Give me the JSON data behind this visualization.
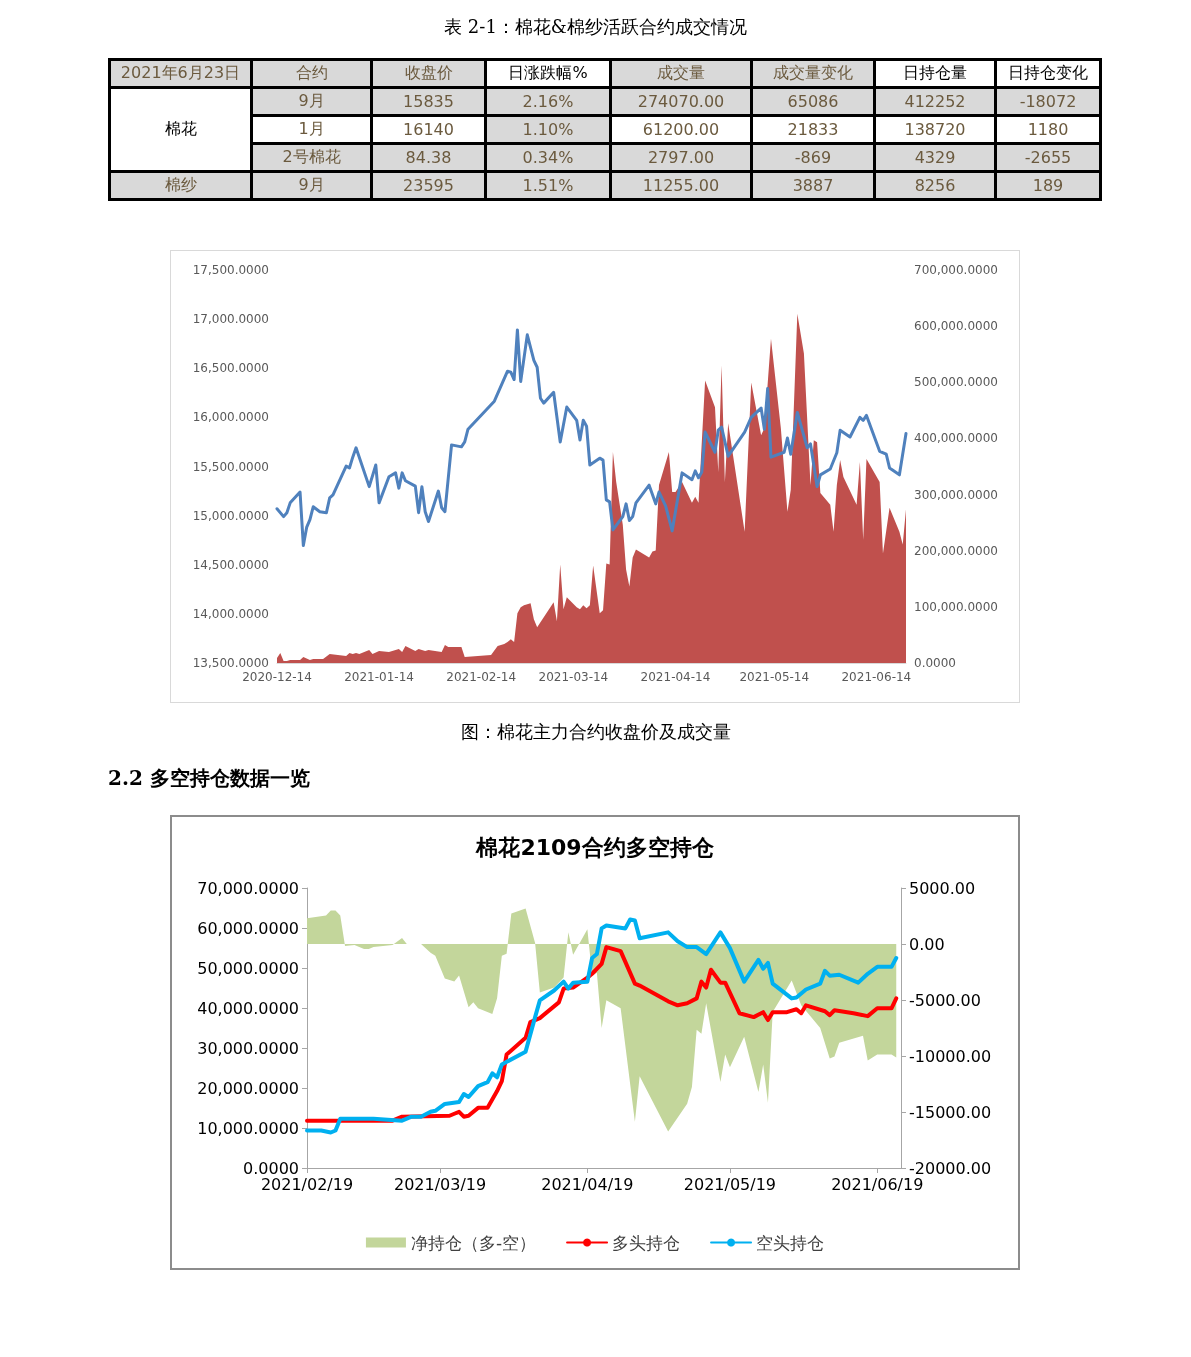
{
  "chart_data": [
    {
      "type": "other",
      "title": "表 2-1：棉花&棉纱活跃合约成交情况",
      "annotations": [
        "2021年6月23日",
        "合约",
        "收盘价",
        "日涨跌幅%",
        "成交量",
        "成交量变化",
        "日持仓量",
        "日持仓变化",
        "棉花",
        "9月",
        "15835",
        "2.16%",
        "274070.00",
        "65086",
        "412252",
        "-18072",
        "1月",
        "16140",
        "1.10%",
        "61200.00",
        "21833",
        "138720",
        "1180",
        "2号棉花",
        "84.38",
        "0.34%",
        "2797.00",
        "-869",
        "4329",
        "-2655",
        "棉纱",
        "9月",
        "23595",
        "1.51%",
        "11255.00",
        "3887",
        "8256",
        "189"
      ]
    },
    {
      "type": "line",
      "title": "图：棉花主力合约收盘价及成交量",
      "legend": false,
      "marker": "none",
      "xlim": [
        "2020-12-14",
        "2021-06-23"
      ],
      "xticks": [
        "2020-12-14",
        "2021-01-14",
        "2021-02-14",
        "2021-03-14",
        "2021-04-14",
        "2021-05-14",
        "2021-06-14"
      ],
      "ylim": [
        13500,
        17500
      ],
      "yticks": [
        {
          "value": 13500,
          "label": "13,500.0000"
        },
        {
          "value": 14000,
          "label": "14,000.0000"
        },
        {
          "value": 14500,
          "label": "14,500.0000"
        },
        {
          "value": 15000,
          "label": "15,000.0000"
        },
        {
          "value": 15500,
          "label": "15,500.0000"
        },
        {
          "value": 16000,
          "label": "16,000.0000"
        },
        {
          "value": 16500,
          "label": "16,500.0000"
        },
        {
          "value": 17000,
          "label": "17,000.0000"
        },
        {
          "value": 17500,
          "label": "17,500.0000"
        }
      ],
      "y2lim": [
        0,
        700000
      ],
      "y2ticks": [
        {
          "value": 0,
          "label": "0.0000"
        },
        {
          "value": 100000,
          "label": "100,000.0000"
        },
        {
          "value": 200000,
          "label": "200,000.0000"
        },
        {
          "value": 300000,
          "label": "300,000.0000"
        },
        {
          "value": 400000,
          "label": "400,000.0000"
        },
        {
          "value": 500000,
          "label": "500,000.0000"
        },
        {
          "value": 600000,
          "label": "600,000.0000"
        },
        {
          "value": 700000,
          "label": "700,000.0000"
        }
      ],
      "series": [
        {
          "type": "area",
          "axis": "y2",
          "color": "#c0504d",
          "x": [
            "2020-12-14",
            "2020-12-15",
            "2020-12-16",
            "2020-12-17",
            "2020-12-18",
            "2020-12-21",
            "2020-12-22",
            "2020-12-24",
            "2020-12-25",
            "2020-12-28",
            "2020-12-30",
            "2021-01-04",
            "2021-01-05",
            "2021-01-06",
            "2021-01-07",
            "2021-01-08",
            "2021-01-11",
            "2021-01-12",
            "2021-01-14",
            "2021-01-17",
            "2021-01-20",
            "2021-01-21",
            "2021-01-22",
            "2021-01-25",
            "2021-01-26",
            "2021-01-28",
            "2021-01-29",
            "2021-02-02",
            "2021-02-03",
            "2021-02-04",
            "2021-02-08",
            "2021-02-09",
            "2021-02-17",
            "2021-02-19",
            "2021-02-21",
            "2021-02-22",
            "2021-02-23",
            "2021-02-24",
            "2021-02-25",
            "2021-02-26",
            "2021-02-27",
            "2021-03-01",
            "2021-03-02",
            "2021-03-03",
            "2021-03-08",
            "2021-03-09",
            "2021-03-10",
            "2021-03-11",
            "2021-03-12",
            "2021-03-15",
            "2021-03-16",
            "2021-03-17",
            "2021-03-18",
            "2021-03-19",
            "2021-03-20",
            "2021-03-22",
            "2021-03-23",
            "2021-03-24",
            "2021-03-25",
            "2021-03-26",
            "2021-03-27",
            "2021-03-29",
            "2021-03-30",
            "2021-03-31",
            "2021-04-01",
            "2021-04-02",
            "2021-04-06",
            "2021-04-07",
            "2021-04-08",
            "2021-04-09",
            "2021-04-12",
            "2021-04-13",
            "2021-04-14",
            "2021-04-16",
            "2021-04-19",
            "2021-04-20",
            "2021-04-21",
            "2021-04-23",
            "2021-04-26",
            "2021-04-27",
            "2021-04-28",
            "2021-04-29",
            "2021-04-30",
            "2021-05-05",
            "2021-05-07",
            "2021-05-10",
            "2021-05-11",
            "2021-05-13",
            "2021-05-16",
            "2021-05-18",
            "2021-05-19",
            "2021-05-21",
            "2021-05-23",
            "2021-05-25",
            "2021-05-26",
            "2021-05-27",
            "2021-05-28",
            "2021-05-31",
            "2021-06-01",
            "2021-06-02",
            "2021-06-03",
            "2021-06-04",
            "2021-06-08",
            "2021-06-09",
            "2021-06-10",
            "2021-06-11",
            "2021-06-15",
            "2021-06-16",
            "2021-06-18",
            "2021-06-21",
            "2021-06-22",
            "2021-06-23"
          ],
          "values": [
            8900,
            17700,
            3500,
            3500,
            5300,
            5300,
            10600,
            5300,
            7100,
            7100,
            16000,
            12400,
            17700,
            16000,
            17700,
            16000,
            23000,
            16000,
            21300,
            19500,
            24800,
            19500,
            30100,
            21300,
            24800,
            21300,
            23000,
            19500,
            31900,
            28400,
            28400,
            10600,
            14200,
            30100,
            33700,
            37200,
            42500,
            37200,
            88600,
            99200,
            102800,
            106300,
            78000,
            63800,
            108100,
            74400,
            175400,
            95700,
            117000,
            99200,
            95700,
            102800,
            97500,
            102800,
            173700,
            88600,
            93900,
            177200,
            175400,
            375700,
            322500,
            246300,
            166600,
            136400,
            187800,
            202000,
            187800,
            198500,
            200200,
            317200,
            375700,
            304800,
            304800,
            322500,
            285300,
            295900,
            285300,
            503200,
            455400,
            340200,
            529800,
            322500,
            427100,
            233900,
            499700,
            405800,
            418200,
            577700,
            418200,
            269300,
            308300,
            622000,
            551100,
            317200,
            396900,
            393400,
            303000,
            281700,
            233900,
            317200,
            361500,
            331400,
            281700,
            357900,
            219700,
            363300,
            322500,
            194900,
            276400,
            233900,
            210900,
            274070
          ]
        },
        {
          "type": "line",
          "color": "#4f81bd",
          "x": [
            "2020-12-14",
            "2020-12-16",
            "2020-12-17",
            "2020-12-18",
            "2020-12-21",
            "2020-12-22",
            "2020-12-23",
            "2020-12-24",
            "2020-12-25",
            "2020-12-27",
            "2020-12-29",
            "2020-12-30",
            "2020-12-31",
            "2021-01-04",
            "2021-01-05",
            "2021-01-06",
            "2021-01-07",
            "2021-01-11",
            "2021-01-13",
            "2021-01-14",
            "2021-01-17",
            "2021-01-19",
            "2021-01-20",
            "2021-01-21",
            "2021-01-22",
            "2021-01-25",
            "2021-01-26",
            "2021-01-27",
            "2021-01-28",
            "2021-01-29",
            "2021-02-01",
            "2021-02-02",
            "2021-02-03",
            "2021-02-05",
            "2021-02-08",
            "2021-02-09",
            "2021-02-10",
            "2021-02-18",
            "2021-02-22",
            "2021-02-23",
            "2021-02-24",
            "2021-02-25",
            "2021-02-26",
            "2021-02-28",
            "2021-03-02",
            "2021-03-03",
            "2021-03-04",
            "2021-03-05",
            "2021-03-08",
            "2021-03-10",
            "2021-03-12",
            "2021-03-15",
            "2021-03-16",
            "2021-03-17",
            "2021-03-18",
            "2021-03-19",
            "2021-03-22",
            "2021-03-23",
            "2021-03-24",
            "2021-03-25",
            "2021-03-26",
            "2021-03-29",
            "2021-03-30",
            "2021-03-31",
            "2021-04-01",
            "2021-04-02",
            "2021-04-06",
            "2021-04-08",
            "2021-04-09",
            "2021-04-11",
            "2021-04-13",
            "2021-04-16",
            "2021-04-19",
            "2021-04-20",
            "2021-04-21",
            "2021-04-22",
            "2021-04-23",
            "2021-04-26",
            "2021-04-27",
            "2021-04-28",
            "2021-04-30",
            "2021-05-05",
            "2021-05-07",
            "2021-05-10",
            "2021-05-11",
            "2021-05-12",
            "2021-05-13",
            "2021-05-17",
            "2021-05-18",
            "2021-05-19",
            "2021-05-21",
            "2021-05-24",
            "2021-05-25",
            "2021-05-27",
            "2021-05-28",
            "2021-05-31",
            "2021-06-02",
            "2021-06-03",
            "2021-06-06",
            "2021-06-09",
            "2021-06-10",
            "2021-06-11",
            "2021-06-15",
            "2021-06-17",
            "2021-06-18",
            "2021-06-21",
            "2021-06-23"
          ],
          "values": [
            15070,
            14990,
            15030,
            15130,
            15240,
            14695,
            14880,
            14960,
            15090,
            15040,
            15030,
            15180,
            15210,
            15505,
            15485,
            15595,
            15690,
            15295,
            15515,
            15130,
            15395,
            15435,
            15280,
            15435,
            15355,
            15300,
            15030,
            15295,
            15040,
            14940,
            15250,
            15080,
            15040,
            15720,
            15700,
            15750,
            15880,
            16165,
            16470,
            16460,
            16385,
            16890,
            16365,
            16840,
            16580,
            16510,
            16195,
            16145,
            16255,
            15750,
            16105,
            15970,
            15770,
            15970,
            15910,
            15515,
            15585,
            15565,
            15160,
            15140,
            14855,
            14990,
            15120,
            14950,
            14990,
            15130,
            15310,
            15120,
            15240,
            15100,
            14845,
            15435,
            15365,
            15455,
            15385,
            15445,
            15850,
            15645,
            15870,
            15900,
            15605,
            15850,
            16000,
            16095,
            15880,
            16295,
            15595,
            15645,
            15790,
            15625,
            16050,
            15690,
            15730,
            15295,
            15415,
            15475,
            15640,
            15870,
            15800,
            16000,
            15970,
            16020,
            15655,
            15625,
            15485,
            15415,
            15835
          ]
        }
      ]
    },
    {
      "type": "line",
      "title": "棉花2109合约多空持仓",
      "annotations": [
        "2.2 多空持仓数据一览"
      ],
      "legend": "bottom",
      "marker": "none",
      "xlim": [
        "2021-02-19",
        "2021-06-24"
      ],
      "xticks": [
        {
          "value": "2021-02-19",
          "label": "2021/02/19"
        },
        {
          "value": "2021-03-19",
          "label": "2021/03/19"
        },
        {
          "value": "2021-04-19",
          "label": "2021/04/19"
        },
        {
          "value": "2021-05-19",
          "label": "2021/05/19"
        },
        {
          "value": "2021-06-19",
          "label": "2021/06/19"
        }
      ],
      "ylim": [
        0,
        70000
      ],
      "yticks": [
        {
          "value": 0,
          "label": "0.0000"
        },
        {
          "value": 10000,
          "label": "10,000.0000"
        },
        {
          "value": 20000,
          "label": "20,000.0000"
        },
        {
          "value": 30000,
          "label": "30,000.0000"
        },
        {
          "value": 40000,
          "label": "40,000.0000"
        },
        {
          "value": 50000,
          "label": "50,000.0000"
        },
        {
          "value": 60000,
          "label": "60,000.0000"
        },
        {
          "value": 70000,
          "label": "70,000.0000"
        }
      ],
      "y2lim": [
        -20000,
        5000
      ],
      "y2ticks": [
        {
          "value": -20000,
          "label": "-20000.00"
        },
        {
          "value": -15000,
          "label": "-15000.00"
        },
        {
          "value": -10000,
          "label": "-10000.00"
        },
        {
          "value": -5000,
          "label": "-5000.00"
        },
        {
          "value": 0,
          "label": "0.00"
        },
        {
          "value": 5000,
          "label": "5000.00"
        }
      ],
      "series": [
        {
          "type": "area",
          "axis": "y2",
          "name": "净持仓（多-空）",
          "color": "#c3d69b",
          "x": [
            "2021-02-19",
            "2021-02-23",
            "2021-02-24",
            "2021-02-25",
            "2021-02-26",
            "2021-02-27",
            "2021-03-01",
            "2021-03-03",
            "2021-03-04",
            "2021-03-05",
            "2021-03-09",
            "2021-03-11",
            "2021-03-12",
            "2021-03-15",
            "2021-03-17",
            "2021-03-18",
            "2021-03-20",
            "2021-03-22",
            "2021-03-23",
            "2021-03-25",
            "2021-03-26",
            "2021-03-27",
            "2021-03-30",
            "2021-03-31",
            "2021-04-01",
            "2021-04-02",
            "2021-04-03",
            "2021-04-06",
            "2021-04-08",
            "2021-04-09",
            "2021-04-12",
            "2021-04-14",
            "2021-04-15",
            "2021-04-16",
            "2021-04-19",
            "2021-04-20",
            "2021-04-21",
            "2021-04-22",
            "2021-04-23",
            "2021-04-26",
            "2021-04-29",
            "2021-04-30",
            "2021-05-06",
            "2021-05-10",
            "2021-05-11",
            "2021-05-12",
            "2021-05-13",
            "2021-05-14",
            "2021-05-17",
            "2021-05-18",
            "2021-05-19",
            "2021-05-22",
            "2021-05-25",
            "2021-05-26",
            "2021-05-27",
            "2021-05-28",
            "2021-06-01",
            "2021-06-03",
            "2021-06-07",
            "2021-06-09",
            "2021-06-10",
            "2021-06-11",
            "2021-06-16",
            "2021-06-17",
            "2021-06-19",
            "2021-06-22",
            "2021-06-23"
          ],
          "values": [
            2290,
            2550,
            3000,
            3000,
            2550,
            -180,
            -90,
            -440,
            -440,
            -260,
            -90,
            530,
            0,
            0,
            -790,
            -1060,
            -3080,
            -3350,
            -2820,
            -5640,
            -5200,
            -5730,
            -6260,
            -4850,
            -1060,
            -880,
            2730,
            3170,
            90,
            -4320,
            -3880,
            -3000,
            1060,
            -970,
            1320,
            -2820,
            -2560,
            -7490,
            -5020,
            -5730,
            -15860,
            -11810,
            -16740,
            -14270,
            -12770,
            -7660,
            -8020,
            -5290,
            -12330,
            -9870,
            -11010,
            -8280,
            -13220,
            -10750,
            -14180,
            -6080,
            -3260,
            -5460,
            -7490,
            -10220,
            -10040,
            -8810,
            -8190,
            -10400,
            -9870,
            -9870,
            -10130
          ]
        },
        {
          "type": "line",
          "name": "多头持仓",
          "color": "#ff0000",
          "x": [
            "2021-02-19",
            "2021-03-09",
            "2021-03-11",
            "2021-03-21",
            "2021-03-22",
            "2021-03-23",
            "2021-03-24",
            "2021-03-25",
            "2021-03-27",
            "2021-03-29",
            "2021-03-31",
            "2021-04-01",
            "2021-04-02",
            "2021-04-06",
            "2021-04-07",
            "2021-04-09",
            "2021-04-13",
            "2021-04-14",
            "2021-04-16",
            "2021-04-19",
            "2021-04-20",
            "2021-04-22",
            "2021-04-23",
            "2021-04-26",
            "2021-04-29",
            "2021-04-30",
            "2021-05-06",
            "2021-05-08",
            "2021-05-10",
            "2021-05-12",
            "2021-05-13",
            "2021-05-14",
            "2021-05-15",
            "2021-05-17",
            "2021-05-18",
            "2021-05-21",
            "2021-05-24",
            "2021-05-26",
            "2021-05-27",
            "2021-05-28",
            "2021-05-31",
            "2021-06-02",
            "2021-06-03",
            "2021-06-04",
            "2021-06-08",
            "2021-06-09",
            "2021-06-10",
            "2021-06-14",
            "2021-06-17",
            "2021-06-19",
            "2021-06-22",
            "2021-06-23"
          ],
          "values": [
            11830,
            11830,
            12820,
            13060,
            13560,
            14050,
            12820,
            13060,
            15040,
            15040,
            19230,
            21690,
            28350,
            32540,
            36480,
            37470,
            41410,
            44860,
            45110,
            47570,
            48560,
            51030,
            55220,
            54230,
            46100,
            45600,
            41660,
            40670,
            41170,
            42400,
            46590,
            45110,
            49550,
            46340,
            46340,
            38700,
            37720,
            38950,
            36980,
            38950,
            38950,
            39690,
            38700,
            40670,
            39190,
            38210,
            39440,
            38700,
            37960,
            39930,
            39930,
            42400
          ]
        },
        {
          "type": "line",
          "name": "空头持仓",
          "color": "#00b0f0",
          "x": [
            "2021-02-19",
            "2021-02-22",
            "2021-02-24",
            "2021-02-25",
            "2021-02-26",
            "2021-03-05",
            "2021-03-11",
            "2021-03-13",
            "2021-03-15",
            "2021-03-17",
            "2021-03-18",
            "2021-03-20",
            "2021-03-23",
            "2021-03-24",
            "2021-03-25",
            "2021-03-27",
            "2021-03-29",
            "2021-03-30",
            "2021-03-31",
            "2021-04-01",
            "2021-04-06",
            "2021-04-08",
            "2021-04-09",
            "2021-04-12",
            "2021-04-14",
            "2021-04-15",
            "2021-04-16",
            "2021-04-19",
            "2021-04-20",
            "2021-04-21",
            "2021-04-22",
            "2021-04-23",
            "2021-04-27",
            "2021-04-28",
            "2021-04-29",
            "2021-04-30",
            "2021-05-06",
            "2021-05-08",
            "2021-05-10",
            "2021-05-12",
            "2021-05-14",
            "2021-05-17",
            "2021-05-19",
            "2021-05-22",
            "2021-05-25",
            "2021-05-26",
            "2021-05-27",
            "2021-05-28",
            "2021-06-01",
            "2021-06-02",
            "2021-06-04",
            "2021-06-07",
            "2021-06-08",
            "2021-06-09",
            "2021-06-11",
            "2021-06-15",
            "2021-06-17",
            "2021-06-19",
            "2021-06-22",
            "2021-06-23"
          ],
          "values": [
            9370,
            9370,
            8870,
            9370,
            12330,
            12330,
            11830,
            12820,
            12820,
            14050,
            14300,
            16020,
            16520,
            18490,
            17750,
            20460,
            21450,
            23660,
            22680,
            25880,
            29090,
            37720,
            41910,
            44370,
            46590,
            44860,
            46340,
            46590,
            52500,
            53490,
            59900,
            60640,
            59900,
            62120,
            61870,
            57430,
            58910,
            56700,
            55220,
            55220,
            53490,
            58910,
            54970,
            46590,
            52010,
            49790,
            51270,
            46100,
            42400,
            42640,
            44620,
            46100,
            49300,
            48070,
            48310,
            46340,
            48560,
            50290,
            50290,
            52500
          ]
        }
      ]
    }
  ]
}
